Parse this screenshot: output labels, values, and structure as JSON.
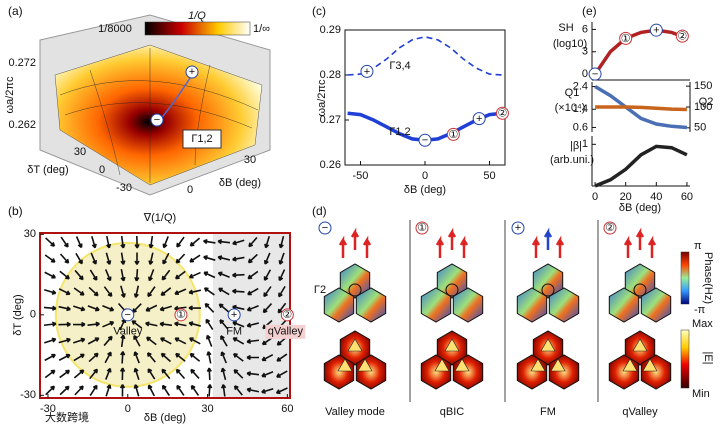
{
  "panel_labels": [
    "(a)",
    "(b)",
    "(c)",
    "(d)",
    "(e)"
  ],
  "watermark": "大数跨境",
  "panel_a": {
    "colorbar_min": "1/8000",
    "colorbar_title": "1/Q",
    "colorbar_max": "1/∞",
    "z_ticks": [
      "0.272",
      "0.262"
    ],
    "z_label": "ωa/2πc",
    "y_ticks": [
      "30",
      "0",
      "-30"
    ],
    "y_label": "δT (deg)",
    "x_ticks": [
      "0",
      "30"
    ],
    "x_label": "δB (deg)",
    "band_label": "Γ1,2",
    "markers": [
      "+",
      "−"
    ]
  },
  "panel_d": {
    "band_label": "Γ2",
    "columns": [
      {
        "marker": "−",
        "label": "Valley mode"
      },
      {
        "marker": "①",
        "label": "qBIC"
      },
      {
        "marker": "+",
        "label": "FM"
      },
      {
        "marker": "②",
        "label": "qValley"
      }
    ],
    "phase_label": "Phase(Hz)",
    "phase_max": "π",
    "phase_min": "-π",
    "field_label": "|E|",
    "field_max": "Max",
    "field_min": "Min"
  },
  "chart_data": [
    {
      "type": "quiver",
      "title": "∇(1/Q)",
      "xlabel": "δB (deg)",
      "ylabel": "δT (deg)",
      "xlim": [
        -33,
        61
      ],
      "ylim": [
        -31,
        30.5
      ],
      "xticks": [
        -30,
        0,
        30,
        60
      ],
      "yticks": [
        -30,
        0,
        30
      ],
      "points": [
        {
          "label": "Valley",
          "marker": "−",
          "x": 0,
          "y": 0
        },
        {
          "marker": "①",
          "x": 20,
          "y": 0
        },
        {
          "label": "FM",
          "marker": "+",
          "x": 40,
          "y": 0
        },
        {
          "label": "qValley",
          "marker": "②",
          "x": 60,
          "y": 0
        }
      ]
    },
    {
      "type": "line",
      "xlabel": "δB (deg)",
      "ylabel": "ωa/2πc",
      "xlim": [
        -62,
        62
      ],
      "ylim": [
        0.26,
        0.29
      ],
      "xticks": [
        -50,
        0,
        50
      ],
      "yticks": [
        0.26,
        0.27,
        0.28,
        0.29
      ],
      "x": [
        -60,
        -50,
        -40,
        -30,
        -20,
        -10,
        0,
        10,
        20,
        30,
        40,
        50,
        60
      ],
      "series": [
        {
          "name": "Γ3,4",
          "color": "#1f3fd6",
          "linestyle": "dashed",
          "values": [
            0.28,
            0.2802,
            0.2815,
            0.2835,
            0.286,
            0.2878,
            0.2885,
            0.2878,
            0.286,
            0.2835,
            0.2815,
            0.2802,
            0.28
          ]
        },
        {
          "name": "Γ1,2",
          "color": "#1f3fd6",
          "linestyle": "solid",
          "values": [
            0.2715,
            0.2712,
            0.27,
            0.2685,
            0.267,
            0.2658,
            0.2655,
            0.2658,
            0.267,
            0.2685,
            0.27,
            0.2712,
            0.2715
          ]
        }
      ],
      "points": [
        {
          "marker": "+",
          "x": -45,
          "y": 0.2808
        },
        {
          "marker": "−",
          "x": 0,
          "y": 0.2655
        },
        {
          "marker": "①",
          "x": 22,
          "y": 0.2668
        },
        {
          "marker": "+",
          "x": 42,
          "y": 0.2703
        },
        {
          "marker": "②",
          "x": 60,
          "y": 0.2715
        }
      ]
    },
    {
      "type": "line",
      "ylabel": "(log10)",
      "xlim": [
        -2,
        62
      ],
      "ylim": [
        -0.8,
        7
      ],
      "yticks": [
        0,
        3,
        6
      ],
      "x": [
        0,
        10,
        20,
        30,
        40,
        50,
        60
      ],
      "series": [
        {
          "name": "SH",
          "color": "#b22222",
          "linestyle": "solid",
          "values": [
            0,
            3.0,
            4.8,
            5.6,
            5.9,
            5.6,
            4.8
          ]
        }
      ],
      "points": [
        {
          "marker": "−",
          "x": 0,
          "y": 0
        },
        {
          "marker": "①",
          "x": 20,
          "y": 4.8
        },
        {
          "marker": "+",
          "x": 40,
          "y": 5.9
        },
        {
          "marker": "②",
          "x": 57,
          "y": 5.1
        }
      ]
    },
    {
      "type": "line",
      "ylabel": "(×10⁴)",
      "xlim": [
        -2,
        62
      ],
      "ylim": [
        0.4,
        2.6
      ],
      "yticks": [
        0.6,
        1.4,
        2.4
      ],
      "y2lim": [
        40,
        160
      ],
      "y2ticks": [
        50,
        100,
        150
      ],
      "x": [
        0,
        10,
        20,
        30,
        40,
        50,
        60
      ],
      "series": [
        {
          "name": "Q1",
          "color": "#4a6fb5",
          "linestyle": "solid",
          "values": [
            2.4,
            2.0,
            1.5,
            1.0,
            0.75,
            0.65,
            0.6
          ]
        },
        {
          "name": "Q2",
          "color": "#c8641e",
          "linestyle": "solid",
          "axis": "y2",
          "values": [
            100,
            100,
            100,
            99,
            97,
            95,
            94
          ]
        }
      ]
    },
    {
      "type": "line",
      "ylabel": "(arb.uni.)",
      "xlabel": "δB (deg)",
      "xlim": [
        -2,
        62
      ],
      "ylim": [
        0,
        1.2
      ],
      "yticks": [
        1
      ],
      "xticks": [
        0,
        20,
        40,
        60
      ],
      "x": [
        0,
        10,
        20,
        30,
        40,
        50,
        60
      ],
      "series": [
        {
          "name": "|β|",
          "color": "#222222",
          "linestyle": "solid",
          "values": [
            0,
            0.15,
            0.4,
            0.75,
            0.95,
            0.92,
            0.75
          ]
        }
      ]
    }
  ]
}
